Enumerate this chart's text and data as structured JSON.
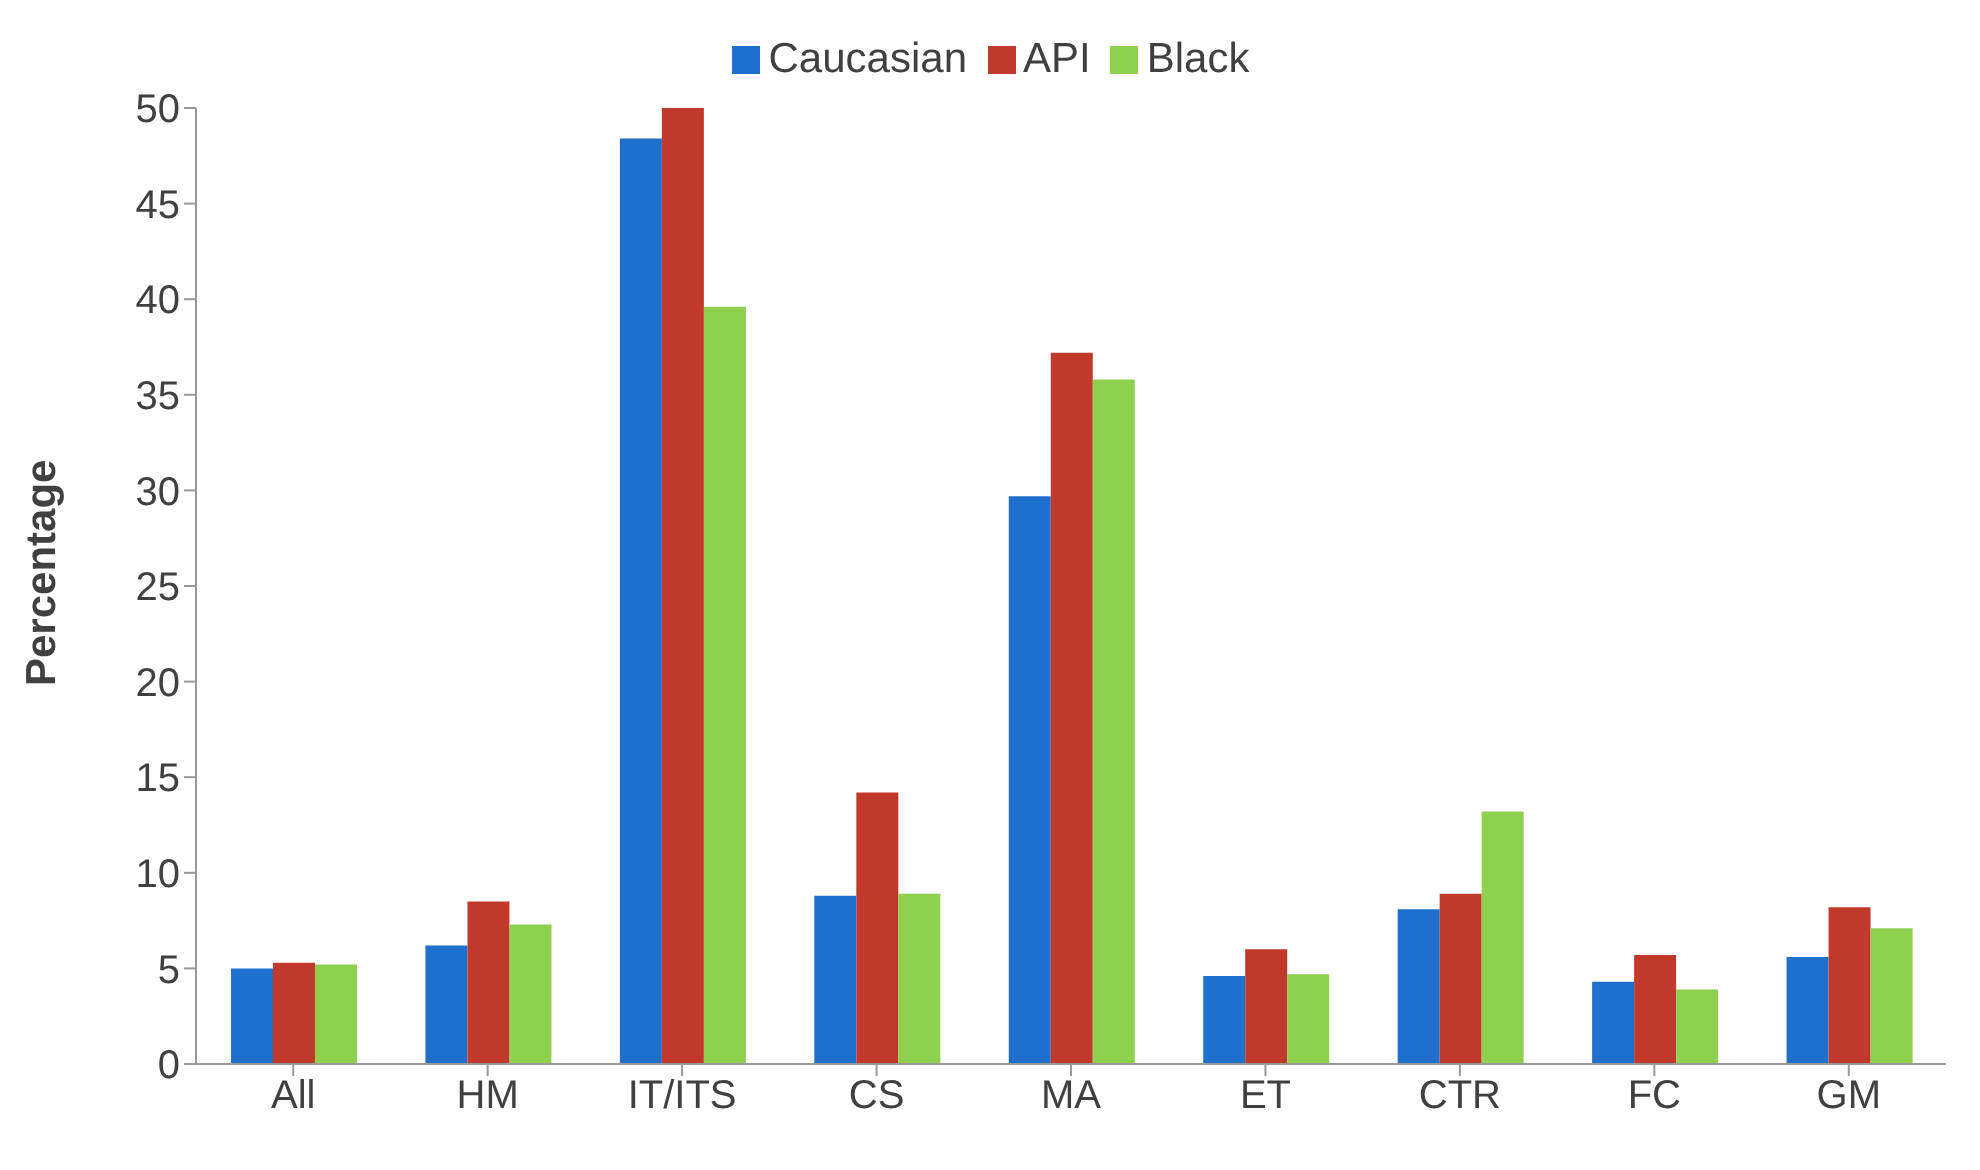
{
  "chart_data": {
    "type": "bar",
    "ylabel": "Percentage",
    "categories": [
      "All",
      "HM",
      "IT/ITS",
      "CS",
      "MA",
      "ET",
      "CTR",
      "FC",
      "GM"
    ],
    "series": [
      {
        "name": "Caucasian",
        "color": "#1f6fcc",
        "values": [
          5.0,
          6.2,
          48.4,
          8.8,
          29.7,
          4.6,
          8.1,
          4.3,
          5.6
        ]
      },
      {
        "name": "API",
        "color": "#c0392b",
        "values": [
          5.3,
          8.5,
          50.0,
          14.2,
          37.2,
          6.0,
          8.9,
          5.7,
          8.2
        ]
      },
      {
        "name": "Black",
        "color": "#8fd14f",
        "values": [
          5.2,
          7.3,
          39.6,
          8.9,
          35.8,
          4.7,
          13.2,
          3.9,
          7.1
        ]
      }
    ],
    "ylim": [
      0,
      50
    ],
    "yticks": [
      0,
      5,
      10,
      15,
      20,
      25,
      30,
      35,
      40,
      45,
      50
    ],
    "grid": false,
    "legend": "top"
  }
}
